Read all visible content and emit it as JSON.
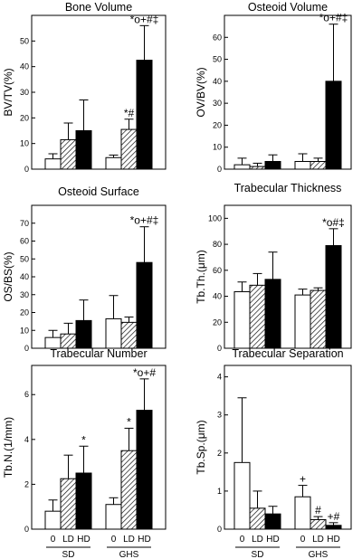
{
  "chart_data": [
    {
      "type": "bar",
      "title": "Bone Volume",
      "ylabel": "BV/TV(%)",
      "ylim": [
        0,
        60
      ],
      "yticks": [
        0,
        10,
        20,
        30,
        40,
        50
      ],
      "categories": [
        "0",
        "LD",
        "HD"
      ],
      "groups": [
        "SD",
        "GHS"
      ],
      "series": [
        {
          "group": "SD",
          "values": [
            4,
            11.5,
            15
          ],
          "errors": [
            2,
            6.5,
            12
          ],
          "annotations": [
            "",
            "",
            ""
          ]
        },
        {
          "group": "GHS",
          "values": [
            4.5,
            15.5,
            42.5
          ],
          "errors": [
            1,
            4,
            13.5
          ],
          "annotations": [
            "",
            "*#",
            "*o+#‡"
          ]
        }
      ]
    },
    {
      "type": "bar",
      "title": "Osteoid Volume",
      "ylabel": "OV/BV(%)",
      "ylim": [
        0,
        70
      ],
      "yticks": [
        0,
        10,
        20,
        30,
        40,
        50,
        60
      ],
      "categories": [
        "0",
        "LD",
        "HD"
      ],
      "groups": [
        "SD",
        "GHS"
      ],
      "series": [
        {
          "group": "SD",
          "values": [
            2,
            1.2,
            3.5
          ],
          "errors": [
            3,
            1.5,
            3
          ],
          "annotations": [
            "",
            "",
            ""
          ]
        },
        {
          "group": "GHS",
          "values": [
            3.5,
            3.5,
            40
          ],
          "errors": [
            3.5,
            1.5,
            26
          ],
          "annotations": [
            "",
            "",
            "*o+#‡"
          ]
        }
      ]
    },
    {
      "type": "bar",
      "title": "Osteoid Surface",
      "ylabel": "OS/BS(%)",
      "ylim": [
        0,
        80
      ],
      "yticks": [
        0,
        10,
        20,
        30,
        40,
        50,
        60,
        70
      ],
      "categories": [
        "0",
        "LD",
        "HD"
      ],
      "groups": [
        "SD",
        "GHS"
      ],
      "series": [
        {
          "group": "SD",
          "values": [
            6,
            8,
            15.5
          ],
          "errors": [
            4,
            6,
            11.5
          ],
          "annotations": [
            "",
            "",
            ""
          ]
        },
        {
          "group": "GHS",
          "values": [
            16.5,
            14.5,
            48
          ],
          "errors": [
            13,
            3,
            20
          ],
          "annotations": [
            "",
            "",
            "*o+#‡"
          ]
        }
      ]
    },
    {
      "type": "bar",
      "title": "Trabecular  Thickness",
      "ylabel": "Tb.Th.(μm)",
      "ylim": [
        0,
        110
      ],
      "yticks": [
        0,
        20,
        40,
        60,
        80,
        100
      ],
      "categories": [
        "0",
        "LD",
        "HD"
      ],
      "groups": [
        "SD",
        "GHS"
      ],
      "series": [
        {
          "group": "SD",
          "values": [
            43.5,
            48.5,
            53
          ],
          "errors": [
            7.5,
            9,
            21
          ],
          "annotations": [
            "",
            "",
            ""
          ]
        },
        {
          "group": "GHS",
          "values": [
            41,
            44.5,
            79
          ],
          "errors": [
            4.5,
            2,
            13
          ],
          "annotations": [
            "",
            "",
            "*o#‡"
          ]
        }
      ]
    },
    {
      "type": "bar",
      "title": "Trabecular    Number",
      "ylabel": "Tb.N.(1/mm)",
      "ylim": [
        0,
        7.3
      ],
      "yticks": [
        0,
        2,
        4,
        6
      ],
      "categories": [
        "0",
        "LD",
        "HD"
      ],
      "groups": [
        "SD",
        "GHS"
      ],
      "xlabels": [
        "0",
        "LD",
        "HD",
        "0",
        "LD",
        "HD"
      ],
      "grouplabels": [
        "SD",
        "GHS"
      ],
      "series": [
        {
          "group": "SD",
          "values": [
            0.8,
            2.25,
            2.5
          ],
          "errors": [
            0.5,
            1.05,
            1.2
          ],
          "annotations": [
            "",
            "",
            "*"
          ]
        },
        {
          "group": "GHS",
          "values": [
            1.1,
            3.5,
            5.3
          ],
          "errors": [
            0.3,
            1.0,
            1.4
          ],
          "annotations": [
            "",
            "*",
            "*o+#"
          ]
        }
      ]
    },
    {
      "type": "bar",
      "title": "Trabecular   Separation",
      "ylabel": "Tb.Sp.(μm)",
      "ylim": [
        0,
        4.3
      ],
      "yticks": [
        0,
        1,
        2,
        3,
        4
      ],
      "categories": [
        "0",
        "LD",
        "HD"
      ],
      "groups": [
        "SD",
        "GHS"
      ],
      "xlabels": [
        "0",
        "LD",
        "HD",
        "0",
        "LD",
        "HD"
      ],
      "grouplabels": [
        "SD",
        "GHS"
      ],
      "series": [
        {
          "group": "SD",
          "values": [
            1.75,
            0.55,
            0.4
          ],
          "errors": [
            1.7,
            0.45,
            0.2
          ],
          "annotations": [
            "",
            "",
            ""
          ]
        },
        {
          "group": "GHS",
          "values": [
            0.85,
            0.25,
            0.1
          ],
          "errors": [
            0.3,
            0.08,
            0.07
          ],
          "annotations": [
            "+",
            "#",
            "+#"
          ]
        }
      ]
    }
  ]
}
